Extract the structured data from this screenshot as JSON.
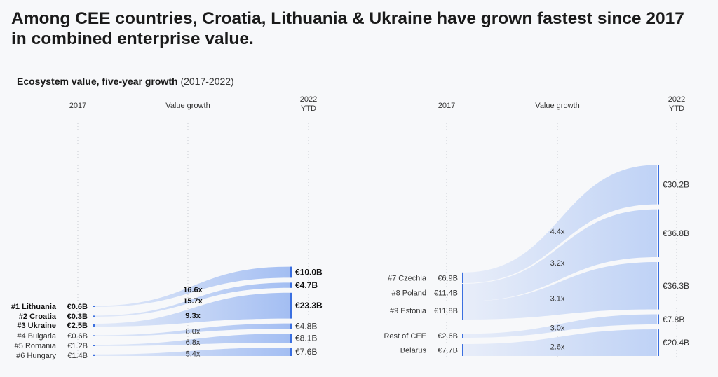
{
  "headline": {
    "line1": "Among CEE countries, Croatia, Lithuania & Ukraine have grown fastest since 2017",
    "line2": "in combined enterprise value."
  },
  "subtitle": {
    "bold": "Ecosystem value, five-year growth",
    "range": "(2017-2022)"
  },
  "colors": {
    "flow_light": "#dde6f8",
    "flow_dark": "#9fbbf2",
    "bar": "#3a6fe0",
    "grid": "#c9ccd3",
    "text": "#333333"
  },
  "chart_data": [
    {
      "type": "sankey-growth",
      "panel": "left",
      "column_headers": {
        "start": "2017",
        "growth": "Value growth",
        "end_line1": "2022",
        "end_line2": "YTD"
      },
      "series": [
        {
          "rank": "#1 Lithuania",
          "value_2017": "€0.6B",
          "growth": "16.6x",
          "value_2022": "€10.0B",
          "v2017": 0.6,
          "v2022": 10.0,
          "bold": true
        },
        {
          "rank": "#2 Croatia",
          "value_2017": "€0.3B",
          "growth": "15.7x",
          "value_2022": "€4.7B",
          "v2017": 0.3,
          "v2022": 4.7,
          "bold": true
        },
        {
          "rank": "#3 Ukraine",
          "value_2017": "€2.5B",
          "growth": "9.3x",
          "value_2022": "€23.3B",
          "v2017": 2.5,
          "v2022": 23.3,
          "bold": true
        },
        {
          "rank": "#4 Bulgaria",
          "value_2017": "€0.6B",
          "growth": "8.0x",
          "value_2022": "€4.8B",
          "v2017": 0.6,
          "v2022": 4.8,
          "bold": false
        },
        {
          "rank": "#5 Romania",
          "value_2017": "€1.2B",
          "growth": "6.8x",
          "value_2022": "€8.1B",
          "v2017": 1.2,
          "v2022": 8.1,
          "bold": false
        },
        {
          "rank": "#6 Hungary",
          "value_2017": "€1.4B",
          "growth": "5.4x",
          "value_2022": "€7.6B",
          "v2017": 1.4,
          "v2022": 7.6,
          "bold": false
        }
      ]
    },
    {
      "type": "sankey-growth",
      "panel": "right",
      "column_headers": {
        "start": "2017",
        "growth": "Value growth",
        "end_line1": "2022",
        "end_line2": "YTD"
      },
      "series": [
        {
          "rank": "#7 Czechia",
          "value_2017": "€6.9B",
          "growth": "4.4x",
          "value_2022": "€30.2B",
          "v2017": 6.9,
          "v2022": 30.2,
          "bold": false
        },
        {
          "rank": "#8 Poland",
          "value_2017": "€11.4B",
          "growth": "3.2x",
          "value_2022": "€36.8B",
          "v2017": 11.4,
          "v2022": 36.8,
          "bold": false
        },
        {
          "rank": "#9 Estonia",
          "value_2017": "€11.8B",
          "growth": "3.1x",
          "value_2022": "€36.3B",
          "v2017": 11.8,
          "v2022": 36.3,
          "bold": false
        },
        {
          "rank": "Rest of CEE",
          "value_2017": "€2.6B",
          "growth": "3.0x",
          "value_2022": "€7.8B",
          "v2017": 2.6,
          "v2022": 7.8,
          "bold": false
        },
        {
          "rank": "Belarus",
          "value_2017": "€7.7B",
          "growth": "2.6x",
          "value_2022": "€20.4B",
          "v2017": 7.7,
          "v2022": 20.4,
          "bold": false
        }
      ]
    }
  ]
}
